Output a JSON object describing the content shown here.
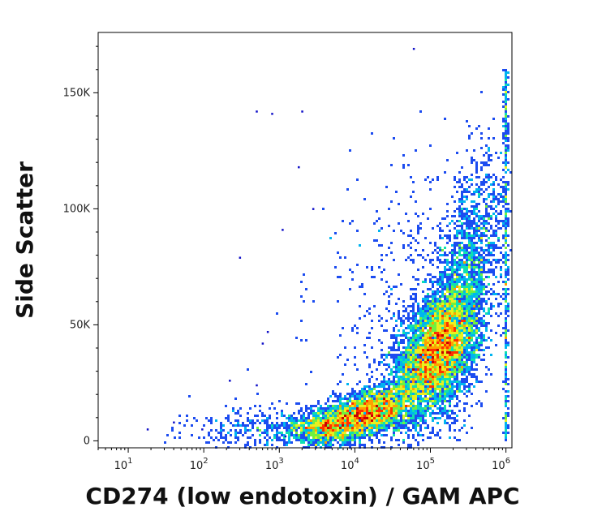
{
  "chart_data": {
    "type": "scatter",
    "subtype": "flow-cytometry-density-plot",
    "xlabel": "CD274 (low endotoxin) / GAM APC",
    "ylabel": "Side Scatter",
    "x_scale": "log",
    "xlim": [
      4,
      1200000
    ],
    "ylim": [
      -3000,
      176000
    ],
    "x_ticks": [
      {
        "value": 10,
        "base": "10",
        "exp": "1"
      },
      {
        "value": 100,
        "base": "10",
        "exp": "2"
      },
      {
        "value": 1000,
        "base": "10",
        "exp": "3"
      },
      {
        "value": 10000,
        "base": "10",
        "exp": "4"
      },
      {
        "value": 100000,
        "base": "10",
        "exp": "5"
      },
      {
        "value": 1000000,
        "base": "10",
        "exp": "6"
      }
    ],
    "y_ticks": [
      {
        "value": 0,
        "label": "0"
      },
      {
        "value": 50000,
        "label": "50K"
      },
      {
        "value": 100000,
        "label": "100K"
      },
      {
        "value": 150000,
        "label": "150K"
      }
    ],
    "density_colormap": [
      "#1010c8",
      "#1c4cf0",
      "#00b4f0",
      "#10e0b0",
      "#70f040",
      "#e8f020",
      "#ffa000",
      "#ff3000",
      "#c80000"
    ],
    "populations": [
      {
        "x_center": 120000,
        "y_center": 38000,
        "x_log_sd": 0.28,
        "y_sd": 14000,
        "corr": 0.45,
        "n": 5000
      },
      {
        "x_center": 15000,
        "y_center": 12000,
        "x_log_sd": 0.32,
        "y_sd": 6000,
        "corr": 0.5,
        "n": 2600
      },
      {
        "x_center": 300000,
        "y_center": 70000,
        "x_log_sd": 0.25,
        "y_sd": 25000,
        "corr": 0.5,
        "n": 1800
      },
      {
        "x_center": 4000,
        "y_center": 6000,
        "x_log_sd": 0.25,
        "y_sd": 4000,
        "corr": 0.2,
        "n": 900
      },
      {
        "x_center": 600,
        "y_center": 5000,
        "x_log_sd": 0.5,
        "y_sd": 5000,
        "corr": 0.0,
        "n": 350
      },
      {
        "x_center": 50000,
        "y_center": 60000,
        "x_log_sd": 0.6,
        "y_sd": 30000,
        "corr": 0.3,
        "n": 450
      }
    ],
    "edge_population": {
      "x": 1000000,
      "y_min": 0,
      "y_max": 160000,
      "n": 400
    },
    "outliers": [
      [
        1200,
        2000
      ],
      [
        40,
        8000
      ],
      [
        700,
        47000
      ],
      [
        600,
        42000
      ],
      [
        1800,
        118000
      ],
      [
        500,
        142000
      ],
      [
        300,
        79000
      ],
      [
        1100,
        91000
      ],
      [
        2800,
        100000
      ],
      [
        60000,
        169000
      ],
      [
        2000,
        142000
      ],
      [
        800,
        141000
      ],
      [
        220,
        26000
      ],
      [
        95,
        5000
      ],
      [
        18,
        5000
      ],
      [
        500,
        24000
      ]
    ],
    "grid": false,
    "legend": "none"
  }
}
